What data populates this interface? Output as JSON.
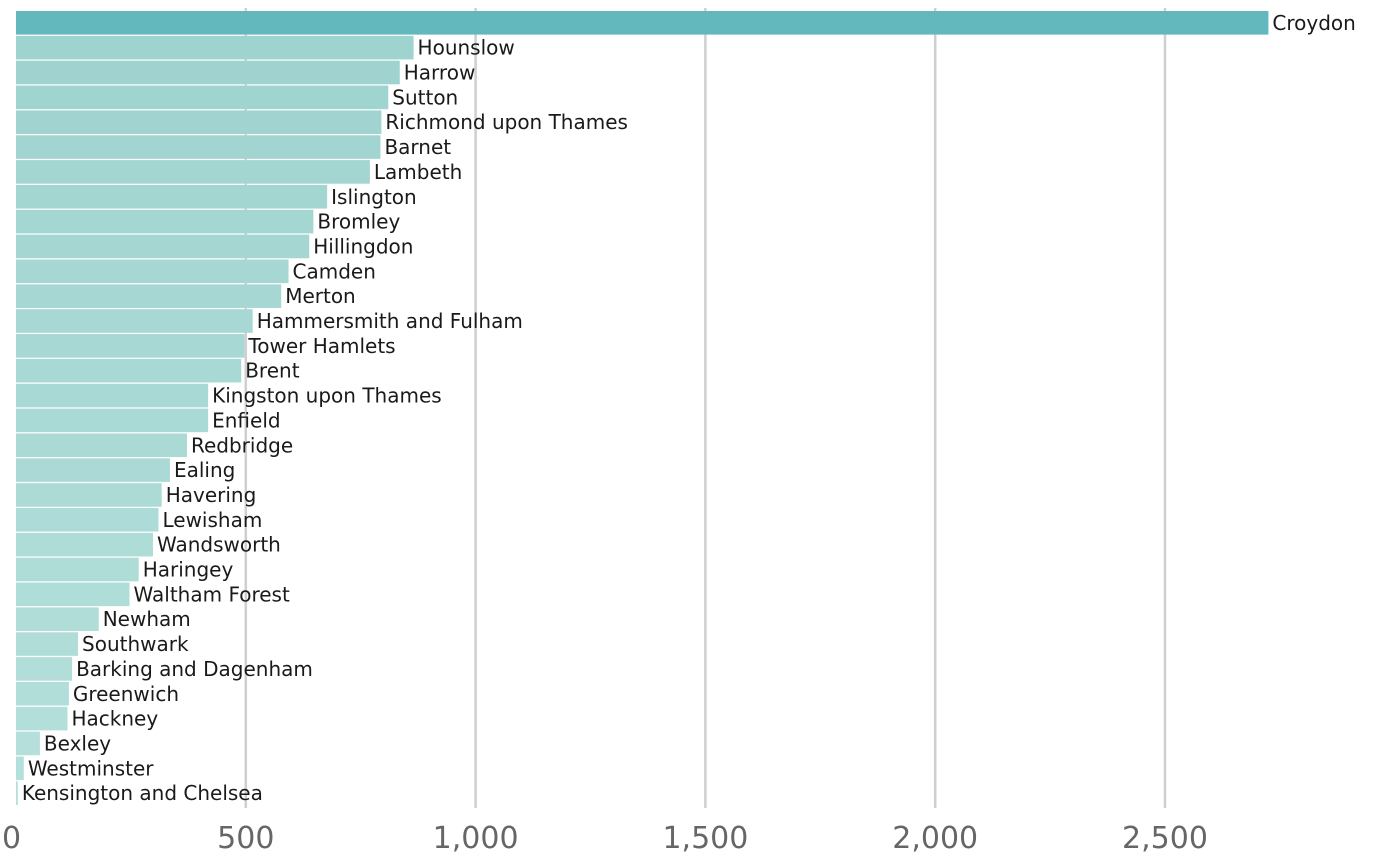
{
  "chart_data": {
    "type": "bar",
    "orientation": "horizontal",
    "title": "",
    "xlabel": "",
    "ylabel": "",
    "xlim": [
      0,
      2900
    ],
    "grid": true,
    "legend": "none",
    "x_ticks": [
      0,
      500,
      1000,
      1500,
      2000,
      2500
    ],
    "x_tick_labels": [
      "0",
      "500",
      "1,000",
      "1,500",
      "2,000",
      "2,500"
    ],
    "categories": [
      "Croydon",
      "Hounslow",
      "Harrow",
      "Sutton",
      "Richmond upon Thames",
      "Barnet",
      "Lambeth",
      "Islington",
      "Bromley",
      "Hillingdon",
      "Camden",
      "Merton",
      "Hammersmith and Fulham",
      "Tower Hamlets",
      "Brent",
      "Kingston upon Thames",
      "Enfield",
      "Redbridge",
      "Ealing",
      "Havering",
      "Lewisham",
      "Wandsworth",
      "Haringey",
      "Waltham Forest",
      "Newham",
      "Southwark",
      "Barking and Dagenham",
      "Greenwich",
      "Hackney",
      "Bexley",
      "Westminster",
      "Kensington and Chelsea"
    ],
    "values": [
      2725,
      865,
      835,
      810,
      795,
      793,
      770,
      677,
      647,
      638,
      593,
      577,
      515,
      497,
      490,
      418,
      418,
      372,
      335,
      317,
      310,
      298,
      267,
      247,
      180,
      135,
      122,
      115,
      112,
      52,
      17,
      4
    ],
    "highlight_index": 0,
    "colors": {
      "highlight": "#62b8bd",
      "bars_top": "#9fd3cf",
      "bars_bottom": "#b5e0db",
      "grid": "#cfcfcf",
      "tick_text": "#666666",
      "label_text": "#1a1a1a"
    }
  }
}
